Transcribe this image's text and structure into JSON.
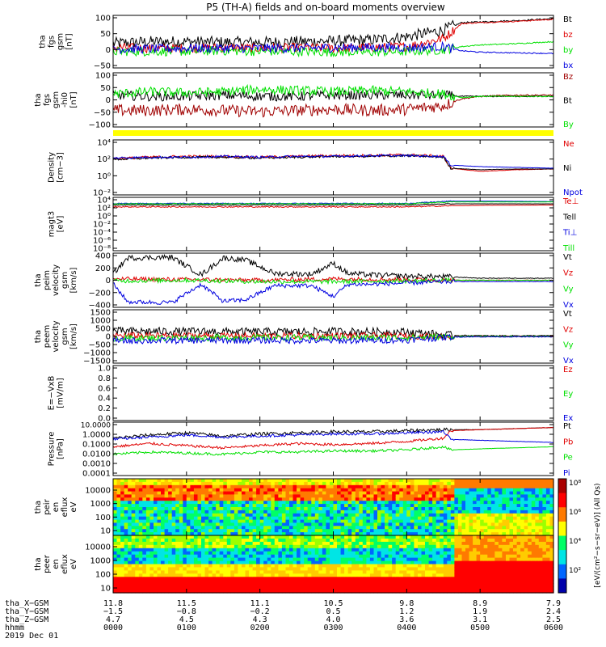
{
  "title": "P5 (TH-A) fields and on-board moments overview",
  "colors": {
    "black": "#000000",
    "red": "#e00000",
    "green": "#00e000",
    "blue": "#0000e0",
    "yellow": "#ffff00",
    "darkred": "#a00000"
  },
  "chart_data": [
    {
      "type": "line",
      "ylabel": [
        "tha",
        "fgs",
        "gsm",
        "[nT]"
      ],
      "yticks": [
        "100",
        "50",
        "0",
        "−50"
      ],
      "ylim": [
        -60,
        100
      ],
      "series": [
        {
          "name": "Bt",
          "color": "#000000",
          "x": [
            0,
            0.5,
            1,
            1.5,
            2,
            2.5,
            3,
            3.5,
            4,
            4.5,
            4.75,
            5,
            5.5,
            6
          ],
          "y": [
            15,
            20,
            20,
            18,
            18,
            20,
            22,
            25,
            35,
            55,
            78,
            80,
            84,
            90
          ]
        },
        {
          "name": "bz",
          "color": "#e00000",
          "x": [
            0,
            0.5,
            1,
            1.5,
            2,
            2.5,
            3,
            3.5,
            4,
            4.5,
            4.75,
            5,
            5.5,
            6
          ],
          "y": [
            2,
            0,
            0,
            2,
            0,
            2,
            0,
            2,
            5,
            30,
            75,
            78,
            82,
            88
          ]
        },
        {
          "name": "by",
          "color": "#00e000",
          "x": [
            0,
            0.5,
            1,
            1.5,
            2,
            2.5,
            3,
            3.5,
            4,
            4.5,
            4.75,
            5,
            5.5,
            6
          ],
          "y": [
            -10,
            -10,
            -10,
            -8,
            -10,
            -10,
            -12,
            -12,
            -10,
            -5,
            5,
            10,
            14,
            20
          ]
        },
        {
          "name": "bx",
          "color": "#0000e0",
          "x": [
            0,
            0.5,
            1,
            1.5,
            2,
            2.5,
            3,
            3.5,
            4,
            4.5,
            4.75,
            5,
            5.5,
            6
          ],
          "y": [
            -2,
            -2,
            0,
            0,
            0,
            0,
            2,
            2,
            2,
            5,
            -8,
            -12,
            -14,
            -16
          ]
        }
      ]
    },
    {
      "type": "line",
      "ylabel": [
        "tha",
        "fgs",
        "gsm",
        "-hi0",
        "[nT]"
      ],
      "yticks": [
        "100",
        "50",
        "0",
        "−50",
        "−100"
      ],
      "ylim": [
        -130,
        100
      ],
      "series": [
        {
          "name": "Bz",
          "color": "#a00000",
          "x": [
            0,
            0.5,
            1,
            1.5,
            2,
            2.5,
            3,
            3.5,
            4,
            4.5,
            4.75,
            5,
            5.5,
            6
          ],
          "y": [
            -60,
            -60,
            -55,
            -60,
            -65,
            -60,
            -55,
            -60,
            -55,
            -40,
            -10,
            0,
            5,
            5
          ]
        },
        {
          "name": "Bt",
          "color": "#000000",
          "x": [
            0,
            0.5,
            1,
            1.5,
            2,
            2.5,
            3,
            3.5,
            4,
            4.5,
            4.75,
            5,
            5.5,
            6
          ],
          "y": [
            5,
            0,
            0,
            5,
            0,
            0,
            5,
            5,
            5,
            5,
            0,
            0,
            0,
            0
          ]
        },
        {
          "name": "By",
          "color": "#00e000",
          "x": [
            0,
            0.5,
            1,
            1.5,
            2,
            2.5,
            3,
            3.5,
            4,
            4.5,
            4.75,
            5,
            5.5,
            6
          ],
          "y": [
            10,
            20,
            15,
            20,
            30,
            25,
            20,
            25,
            20,
            10,
            -5,
            0,
            0,
            0
          ]
        }
      ]
    },
    {
      "type": "line",
      "ylabel": [
        "Density",
        "[cm−3]"
      ],
      "log": true,
      "ylim": [
        -3,
        4
      ],
      "yticks": [
        "10⁴",
        "10²",
        "10⁰",
        "10⁻²"
      ],
      "series": [
        {
          "name": "Ne",
          "color": "#e00000",
          "x": [
            0,
            0.5,
            1,
            1.5,
            2,
            2.5,
            3,
            3.5,
            4,
            4.5,
            4.6,
            5,
            5.5,
            6
          ],
          "y": [
            1.6,
            1.8,
            1.9,
            1.9,
            1.8,
            1.9,
            2.0,
            2.0,
            2.1,
            1.9,
            0.4,
            0.0,
            0.2,
            0.3
          ]
        },
        {
          "name": "Ni",
          "color": "#000000",
          "x": [
            0,
            0.5,
            1,
            1.5,
            2,
            2.5,
            3,
            3.5,
            4,
            4.5,
            4.6,
            5,
            5.5,
            6
          ],
          "y": [
            1.5,
            1.7,
            1.8,
            1.8,
            1.7,
            1.8,
            1.9,
            1.9,
            2.0,
            1.8,
            0.4,
            0.2,
            0.3,
            0.3
          ]
        },
        {
          "name": "Npot",
          "color": "#0000e0",
          "x": [
            0,
            0.5,
            1,
            1.5,
            2,
            2.5,
            3,
            3.5,
            4,
            4.5,
            4.6,
            5,
            5.5,
            6
          ],
          "y": [
            1.7,
            1.8,
            1.8,
            1.9,
            1.8,
            1.9,
            1.9,
            2.0,
            2.0,
            1.9,
            0.8,
            0.6,
            0.5,
            0.4
          ]
        }
      ]
    },
    {
      "type": "line",
      "ylabel": [
        "magt3",
        "[eV]"
      ],
      "log": true,
      "ylim": [
        -9,
        5
      ],
      "yticks": [
        "10⁴",
        "10²",
        "10⁰",
        "10⁻²",
        "10⁻⁴",
        "10⁻⁶",
        "10⁻⁸"
      ],
      "series": [
        {
          "name": "Te⊥",
          "color": "#e00000",
          "x": [
            0,
            1,
            2,
            3,
            4,
            4.6,
            5,
            6
          ],
          "y": [
            2.5,
            2.5,
            2.5,
            2.5,
            2.5,
            2.8,
            2.9,
            3.0
          ]
        },
        {
          "name": "Tell",
          "color": "#000000",
          "x": [
            0,
            1,
            2,
            3,
            4,
            4.6,
            5,
            6
          ],
          "y": [
            3.0,
            3.0,
            3.0,
            3.0,
            3.0,
            3.3,
            3.3,
            3.3
          ]
        },
        {
          "name": "Ti⊥",
          "color": "#0000e0",
          "x": [
            0,
            1,
            2,
            3,
            4,
            4.6,
            5,
            6
          ],
          "y": [
            3.4,
            3.4,
            3.4,
            3.4,
            3.4,
            4.0,
            4.0,
            3.9
          ]
        },
        {
          "name": "Till",
          "color": "#00e000",
          "x": [
            0,
            1,
            2,
            3,
            4,
            4.6,
            5,
            6
          ],
          "y": [
            3.3,
            3.3,
            3.3,
            3.3,
            3.3,
            3.8,
            3.8,
            3.8
          ]
        }
      ]
    },
    {
      "type": "line",
      "ylabel": [
        "tha",
        "peim",
        "velocity",
        "gsm",
        "[km/s]"
      ],
      "ylim": [
        -400,
        400
      ],
      "yticks": [
        "400",
        "200",
        "0",
        "−200",
        "−400"
      ],
      "series": [
        {
          "name": "Vt",
          "color": "#000000",
          "x": [
            0,
            0.2,
            0.8,
            1.2,
            1.5,
            1.8,
            2.2,
            2.7,
            3,
            3.2,
            3.5,
            4,
            4.6,
            5,
            6
          ],
          "y": [
            100,
            330,
            340,
            80,
            330,
            300,
            100,
            90,
            250,
            100,
            80,
            60,
            50,
            30,
            30
          ]
        },
        {
          "name": "Vz",
          "color": "#e00000",
          "x": [
            0,
            1,
            2,
            3,
            4,
            4.6,
            5,
            6
          ],
          "y": [
            20,
            10,
            0,
            20,
            10,
            0,
            0,
            0
          ]
        },
        {
          "name": "Vy",
          "color": "#00e000",
          "x": [
            0,
            1,
            2,
            3,
            4,
            4.6,
            5,
            6
          ],
          "y": [
            -10,
            0,
            -20,
            -20,
            -10,
            0,
            0,
            0
          ]
        },
        {
          "name": "Vx",
          "color": "#0000e0",
          "x": [
            0,
            0.2,
            0.8,
            1.2,
            1.5,
            1.8,
            2.2,
            2.7,
            3,
            3.2,
            3.5,
            4,
            4.6,
            5,
            6
          ],
          "y": [
            -50,
            -320,
            -330,
            -60,
            -310,
            -290,
            -80,
            -80,
            -240,
            -60,
            -60,
            -40,
            -20,
            -20,
            -20
          ]
        }
      ]
    },
    {
      "type": "line",
      "ylabel": [
        "tha",
        "peem",
        "velocity",
        "gsm",
        "[km/s]"
      ],
      "ylim": [
        -1500,
        1500
      ],
      "yticks": [
        "1500",
        "1000",
        "500",
        "0",
        "−500",
        "−1000",
        "−1500"
      ],
      "series": [
        {
          "name": "Vt",
          "color": "#000000",
          "x": [
            0,
            1,
            2,
            3,
            4,
            4.6,
            5,
            6
          ],
          "y": [
            300,
            280,
            260,
            280,
            250,
            60,
            40,
            40
          ]
        },
        {
          "name": "Vz",
          "color": "#e00000",
          "x": [
            0,
            1,
            2,
            3,
            4,
            4.6,
            5,
            6
          ],
          "y": [
            50,
            40,
            30,
            40,
            30,
            0,
            0,
            0
          ]
        },
        {
          "name": "Vy",
          "color": "#00e000",
          "x": [
            0,
            1,
            2,
            3,
            4,
            4.6,
            5,
            6
          ],
          "y": [
            -100,
            -80,
            -60,
            -80,
            -60,
            -10,
            0,
            0
          ]
        },
        {
          "name": "Vx",
          "color": "#0000e0",
          "x": [
            0,
            1,
            2,
            3,
            4,
            4.6,
            5,
            6
          ],
          "y": [
            -250,
            -230,
            -220,
            -240,
            -200,
            -30,
            -20,
            -20
          ]
        }
      ]
    },
    {
      "type": "line",
      "ylabel": [
        "E=−VxB",
        "[mV/m]"
      ],
      "ylim": [
        0,
        1
      ],
      "yticks": [
        "1.0",
        "0.8",
        "0.6",
        "0.4",
        "0.2",
        "0.0"
      ],
      "series": [
        {
          "name": "Ez",
          "color": "#e00000",
          "x": [],
          "y": []
        },
        {
          "name": "Ey",
          "color": "#00e000",
          "x": [],
          "y": []
        },
        {
          "name": "Ex",
          "color": "#0000e0",
          "x": [],
          "y": []
        }
      ]
    },
    {
      "type": "line",
      "ylabel": [
        "Pressure",
        "[nPa]"
      ],
      "log": true,
      "ylim": [
        -4,
        1
      ],
      "yticks": [
        "10.0000",
        "1.0000",
        "0.1000",
        "0.0100",
        "0.0010",
        "0.0001"
      ],
      "series": [
        {
          "name": "Pt",
          "color": "#000000",
          "x": [
            0,
            0.5,
            1,
            1.5,
            2,
            2.5,
            3,
            3.5,
            4,
            4.5,
            4.6,
            5,
            5.5,
            6
          ],
          "y": [
            -0.5,
            -0.2,
            0.0,
            -0.3,
            -0.1,
            0.0,
            0.1,
            0.1,
            0.2,
            0.3,
            0.3,
            0.3,
            0.4,
            0.5
          ]
        },
        {
          "name": "Pb",
          "color": "#e00000",
          "x": [
            0,
            0.5,
            1,
            1.5,
            2,
            2.5,
            3,
            3.5,
            4,
            4.5,
            4.6,
            5,
            5.5,
            6
          ],
          "y": [
            -1.3,
            -1.0,
            -1.2,
            -1.4,
            -1.2,
            -1.0,
            -1.1,
            -1.0,
            -0.8,
            -0.5,
            0.2,
            0.3,
            0.4,
            0.5
          ]
        },
        {
          "name": "Pe",
          "color": "#00e000",
          "x": [
            0,
            0.5,
            1,
            1.5,
            2,
            2.5,
            3,
            3.5,
            4,
            4.5,
            4.6,
            5,
            5.5,
            6
          ],
          "y": [
            -2.0,
            -1.8,
            -1.9,
            -2.0,
            -1.8,
            -1.8,
            -1.7,
            -1.7,
            -1.6,
            -1.3,
            -1.6,
            -1.5,
            -1.4,
            -1.3
          ]
        },
        {
          "name": "Pi",
          "color": "#0000e0",
          "x": [
            0,
            0.5,
            1,
            1.5,
            2,
            2.5,
            3,
            3.5,
            4,
            4.5,
            4.6,
            5,
            5.5,
            6
          ],
          "y": [
            -0.6,
            -0.4,
            -0.2,
            -0.4,
            -0.3,
            -0.2,
            -0.1,
            -0.1,
            0.0,
            0.1,
            -0.6,
            -0.7,
            -0.8,
            -0.9
          ]
        }
      ]
    },
    {
      "type": "heatmap",
      "ylabel": [
        "tha",
        "peir",
        "en",
        "eflux",
        "eV"
      ],
      "yticks": [
        "10000",
        "1000",
        "100",
        "10"
      ],
      "ylim": [
        5,
        30000
      ]
    },
    {
      "type": "heatmap",
      "ylabel": [
        "tha",
        "peer",
        "en",
        "eflux",
        "eV"
      ],
      "yticks": [
        "10000",
        "1000",
        "100",
        "10"
      ],
      "ylim": [
        5,
        30000
      ]
    }
  ],
  "colorbar": {
    "ticks": [
      "10⁸",
      "10⁶",
      "10⁴",
      "10²"
    ],
    "label": "[eV/(cm²−s−sr−eV)] (All Qs)"
  },
  "time_axis": {
    "row_labels": [
      "tha_X−GSM",
      "tha_Y−GSM",
      "tha_Z−GSM",
      "hhmm",
      "2019 Dec 01"
    ],
    "columns": [
      {
        "x": "11.8",
        "y": "−1.5",
        "z": "4.7",
        "t": "0000"
      },
      {
        "x": "11.5",
        "y": "−0.8",
        "z": "4.5",
        "t": "0100"
      },
      {
        "x": "11.1",
        "y": "−0.2",
        "z": "4.3",
        "t": "0200"
      },
      {
        "x": "10.5",
        "y": "0.5",
        "z": "4.0",
        "t": "0300"
      },
      {
        "x": "9.8",
        "y": "1.2",
        "z": "3.6",
        "t": "0400"
      },
      {
        "x": "8.9",
        "y": "1.9",
        "z": "3.1",
        "t": "0500"
      },
      {
        "x": "7.9",
        "y": "2.4",
        "z": "2.5",
        "t": "0600"
      }
    ]
  }
}
